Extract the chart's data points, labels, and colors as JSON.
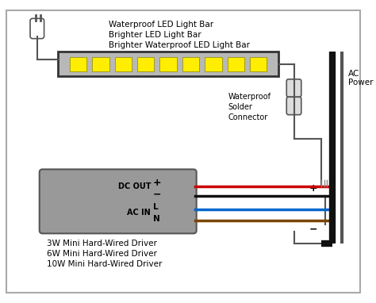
{
  "bg_color": "#ffffff",
  "border_color": "#bbbbbb",
  "title_lines": [
    "Waterproof LED Light Bar",
    "Brighter LED Light Bar",
    "Brighter Waterproof LED Light Bar"
  ],
  "driver_labels": [
    "3W Mini Hard-Wired Driver",
    "6W Mini Hard-Wired Driver",
    "10W Mini Hard-Wired Driver"
  ],
  "led_color": "#ffee00",
  "wire_red": "#cc0000",
  "wire_black": "#111111",
  "wire_blue": "#0066cc",
  "wire_brown": "#7b4500",
  "connector_color": "#dddddd"
}
